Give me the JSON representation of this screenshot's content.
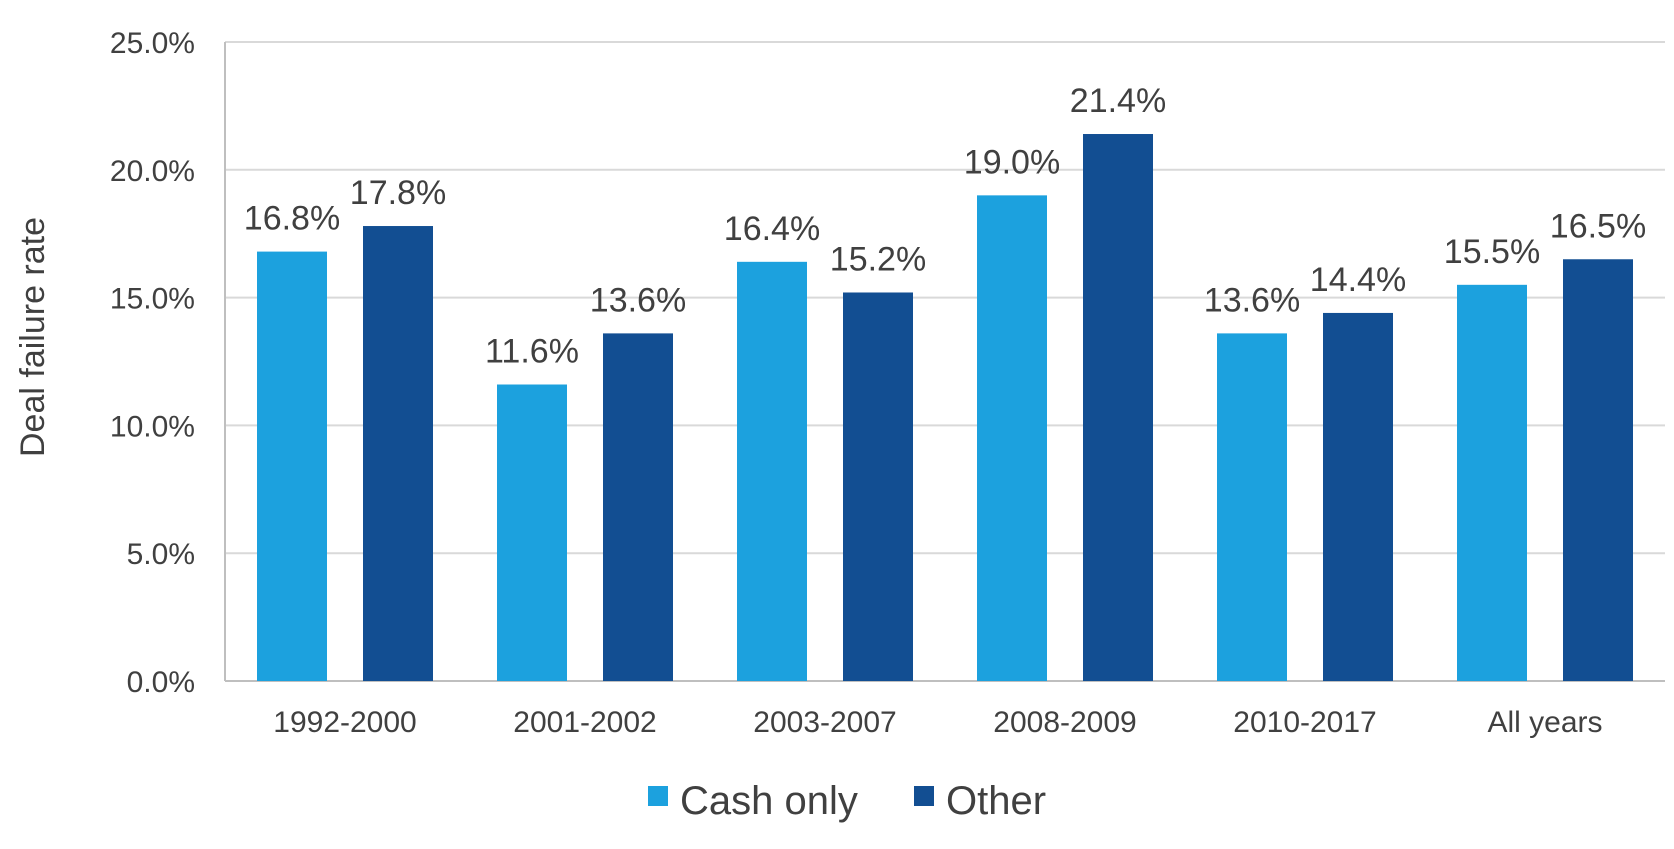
{
  "chart_data": {
    "type": "bar",
    "ylabel": "Deal failure rate",
    "xlabel": "",
    "ylim": [
      0,
      25
    ],
    "yticks": [
      "0.0%",
      "5.0%",
      "10.0%",
      "15.0%",
      "20.0%",
      "25.0%"
    ],
    "ytick_values": [
      0,
      5,
      10,
      15,
      20,
      25
    ],
    "grid": true,
    "legend_position": "bottom",
    "categories": [
      "1992-2000",
      "2001-2002",
      "2003-2007",
      "2008-2009",
      "2010-2017",
      "All years"
    ],
    "series": [
      {
        "name": "Cash only",
        "color": "#1ca1de",
        "values": [
          16.8,
          11.6,
          16.4,
          19.0,
          13.6,
          15.5
        ],
        "labels": [
          "16.8%",
          "11.6%",
          "16.4%",
          "19.0%",
          "13.6%",
          "15.5%"
        ]
      },
      {
        "name": "Other",
        "color": "#124e92",
        "values": [
          17.8,
          13.6,
          15.2,
          21.4,
          14.4,
          16.5
        ],
        "labels": [
          "17.8%",
          "13.6%",
          "15.2%",
          "21.4%",
          "14.4%",
          "16.5%"
        ]
      }
    ]
  }
}
